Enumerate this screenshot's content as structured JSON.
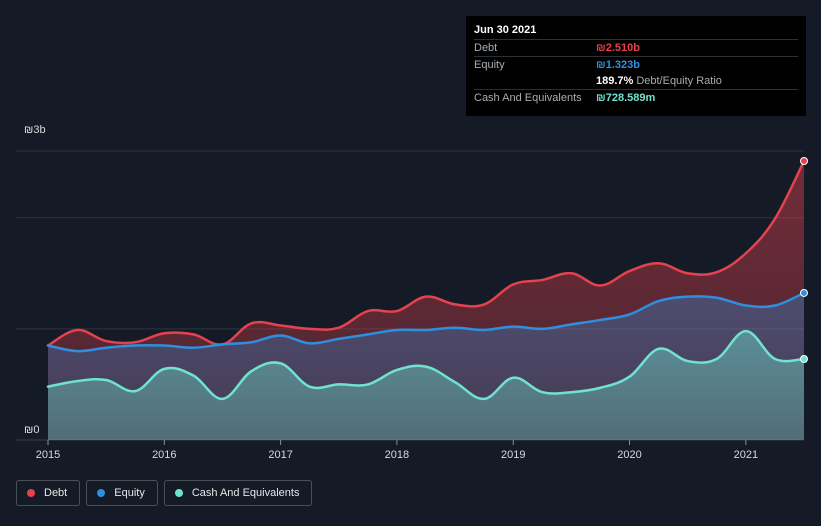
{
  "tooltip": {
    "date": "Jun 30 2021",
    "debt_label": "Debt",
    "debt_value": "₪2.510b",
    "equity_label": "Equity",
    "equity_value": "₪1.323b",
    "ratio_value": "189.7%",
    "ratio_label": "Debt/Equity Ratio",
    "cash_label": "Cash And Equivalents",
    "cash_value": "₪728.589m"
  },
  "legend": {
    "debt": "Debt",
    "equity": "Equity",
    "cash": "Cash And Equivalents"
  },
  "colors": {
    "debt": "#e4424e",
    "equity": "#2f8fde",
    "cash": "#6fe3d0",
    "background": "#151b26",
    "grid": "#2e3440"
  },
  "chart_data": {
    "type": "area",
    "title": "",
    "xlabel": "",
    "ylabel": "",
    "currency_symbol": "₪",
    "y_unit": "billions",
    "ylim": [
      0,
      2.6
    ],
    "y_ticks": [
      {
        "value": 0,
        "label": "₪0"
      },
      {
        "value": 2.6,
        "label": "₪3b"
      }
    ],
    "grid_values": [
      1.0,
      2.0,
      2.6
    ],
    "x_range": [
      2015.0,
      2021.5
    ],
    "x_ticks": [
      {
        "value": 2015,
        "label": "2015"
      },
      {
        "value": 2016,
        "label": "2016"
      },
      {
        "value": 2017,
        "label": "2017"
      },
      {
        "value": 2018,
        "label": "2018"
      },
      {
        "value": 2019,
        "label": "2019"
      },
      {
        "value": 2020,
        "label": "2020"
      },
      {
        "value": 2021,
        "label": "2021"
      }
    ],
    "x": [
      2015.0,
      2015.25,
      2015.5,
      2015.75,
      2016.0,
      2016.25,
      2016.5,
      2016.75,
      2017.0,
      2017.25,
      2017.5,
      2017.75,
      2018.0,
      2018.25,
      2018.5,
      2018.75,
      2019.0,
      2019.25,
      2019.5,
      2019.75,
      2020.0,
      2020.25,
      2020.5,
      2020.75,
      2021.0,
      2021.25,
      2021.5
    ],
    "series": [
      {
        "name": "Debt",
        "values": [
          0.85,
          0.99,
          0.89,
          0.88,
          0.96,
          0.95,
          0.86,
          1.05,
          1.03,
          1.0,
          1.01,
          1.16,
          1.16,
          1.29,
          1.22,
          1.22,
          1.4,
          1.44,
          1.5,
          1.39,
          1.52,
          1.59,
          1.5,
          1.51,
          1.68,
          1.99,
          2.51
        ]
      },
      {
        "name": "Equity",
        "values": [
          0.85,
          0.8,
          0.83,
          0.85,
          0.85,
          0.83,
          0.86,
          0.88,
          0.94,
          0.87,
          0.91,
          0.95,
          0.99,
          0.99,
          1.01,
          0.99,
          1.02,
          1.0,
          1.04,
          1.08,
          1.13,
          1.25,
          1.29,
          1.28,
          1.21,
          1.21,
          1.323
        ]
      },
      {
        "name": "Cash And Equivalents",
        "values": [
          0.48,
          0.53,
          0.54,
          0.44,
          0.64,
          0.58,
          0.37,
          0.62,
          0.69,
          0.48,
          0.5,
          0.5,
          0.63,
          0.66,
          0.52,
          0.37,
          0.56,
          0.43,
          0.43,
          0.47,
          0.57,
          0.82,
          0.71,
          0.73,
          0.98,
          0.73,
          0.7286
        ]
      }
    ]
  }
}
